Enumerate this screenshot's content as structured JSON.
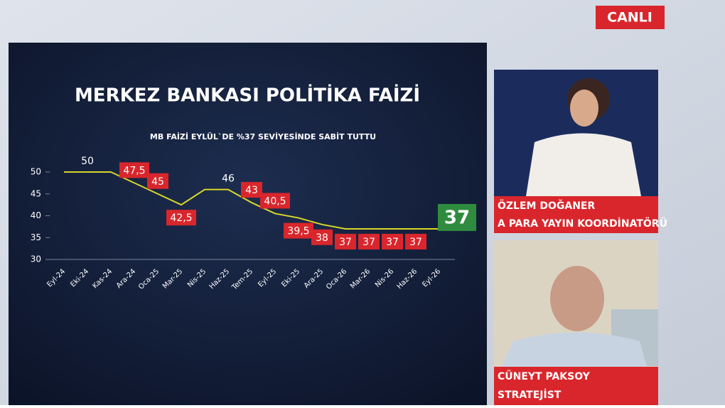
{
  "live_badge": "CANLI",
  "presenters": [
    {
      "name": "ÖZLEM DOĞANER",
      "role": "A PARA YAYIN KOORDİNATÖRÜ"
    },
    {
      "name": "CÜNEYT PAKSOY",
      "role": "STRATEJİST"
    }
  ],
  "chart_data": {
    "type": "line",
    "title": "MERKEZ BANKASI POLİTİKA FAİZİ",
    "subtitle": "MB FAİZİ EYLÜL`DE %37 SEVİYESİNDE SABİT TUTTU",
    "categories": [
      "Eyl-24",
      "Eki-24",
      "Kas-24",
      "Ara-24",
      "Oca-25",
      "Mar-25",
      "Nis-25",
      "Haz-25",
      "Tem-25",
      "Eyl-25",
      "Eki-25",
      "Ara-25",
      "Oca-26",
      "Mar-26",
      "Nis-26",
      "Haz-26",
      "Eyl-26"
    ],
    "values": [
      50,
      50,
      50,
      47.5,
      45,
      42.5,
      46,
      46,
      43,
      40.5,
      39.5,
      38,
      37,
      37,
      37,
      37,
      37
    ],
    "value_labels": [
      null,
      "50",
      null,
      "47,5",
      "45",
      "42,5",
      null,
      "46",
      "43",
      "40,5",
      "39,5",
      "38",
      "37",
      "37",
      "37",
      "37",
      "37"
    ],
    "value_label_colors": [
      null,
      null,
      null,
      "#d9262c",
      "#d9262c",
      "#d9262c",
      null,
      null,
      "#d9262c",
      "#d9262c",
      "#d9262c",
      "#d9262c",
      "#d9262c",
      "#d9262c",
      "#d9262c",
      "#d9262c",
      "#2f8c3f"
    ],
    "color": "#d8d62a",
    "ylim": [
      30,
      50
    ],
    "yticks": [
      30,
      35,
      40,
      45,
      50
    ]
  }
}
